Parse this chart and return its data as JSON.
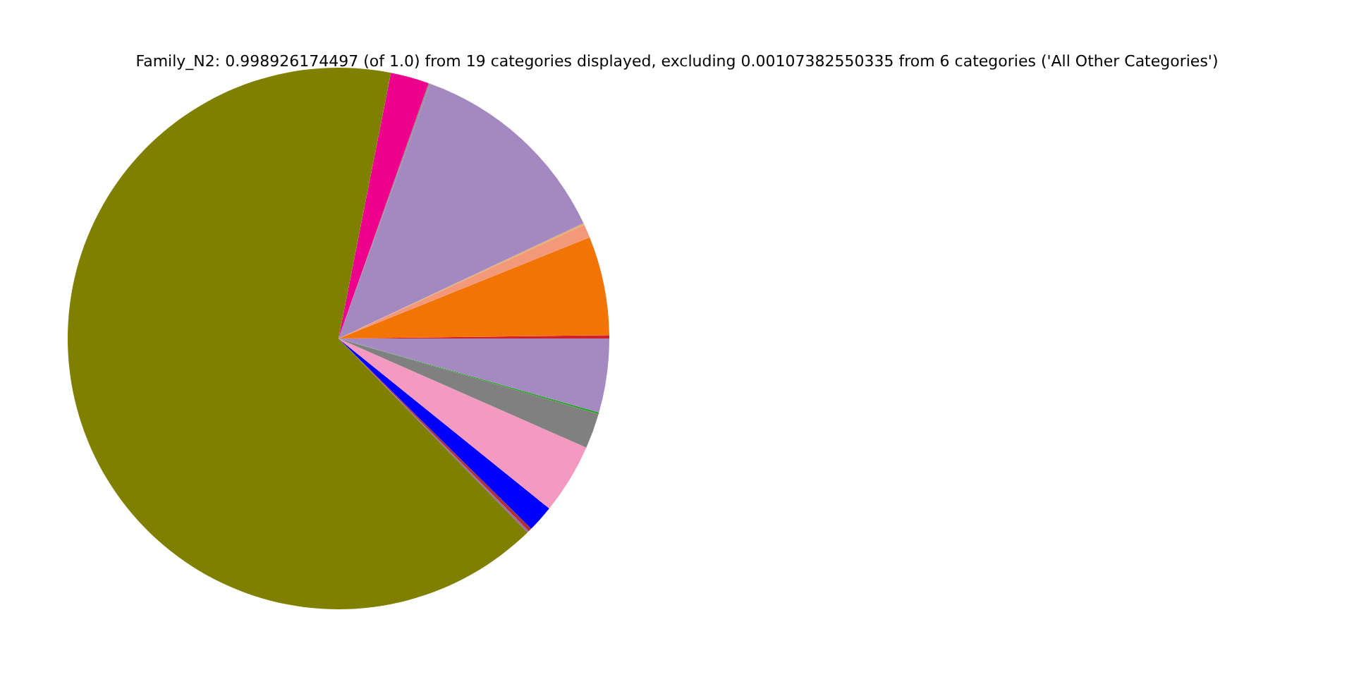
{
  "chart_data": {
    "type": "pie",
    "title": "Family_N2: 0.998926174497 (of 1.0) from 19 categories displayed, excluding 0.00107382550335 from 6 categories ('All Other Categories')",
    "categories": [
      null,
      null,
      null,
      null,
      null,
      null,
      null,
      null,
      null,
      null,
      null,
      null,
      null,
      null,
      null
    ],
    "values": [
      0.2,
      5.9,
      0.8,
      0.1,
      12.5,
      0.1,
      2.3,
      65.4,
      0.1,
      0.2,
      1.6,
      4.2,
      2.1,
      0.1,
      4.4
    ],
    "colors": [
      "#d0202a",
      "#f27405",
      "#f4987a",
      "#e0b070",
      "#a389c0",
      "#909090",
      "#ec008c",
      "#808000",
      "#9467bd",
      "#b03030",
      "#0000ff",
      "#f49ac2",
      "#808080",
      "#2ca02c",
      "#a48ac1"
    ]
  }
}
